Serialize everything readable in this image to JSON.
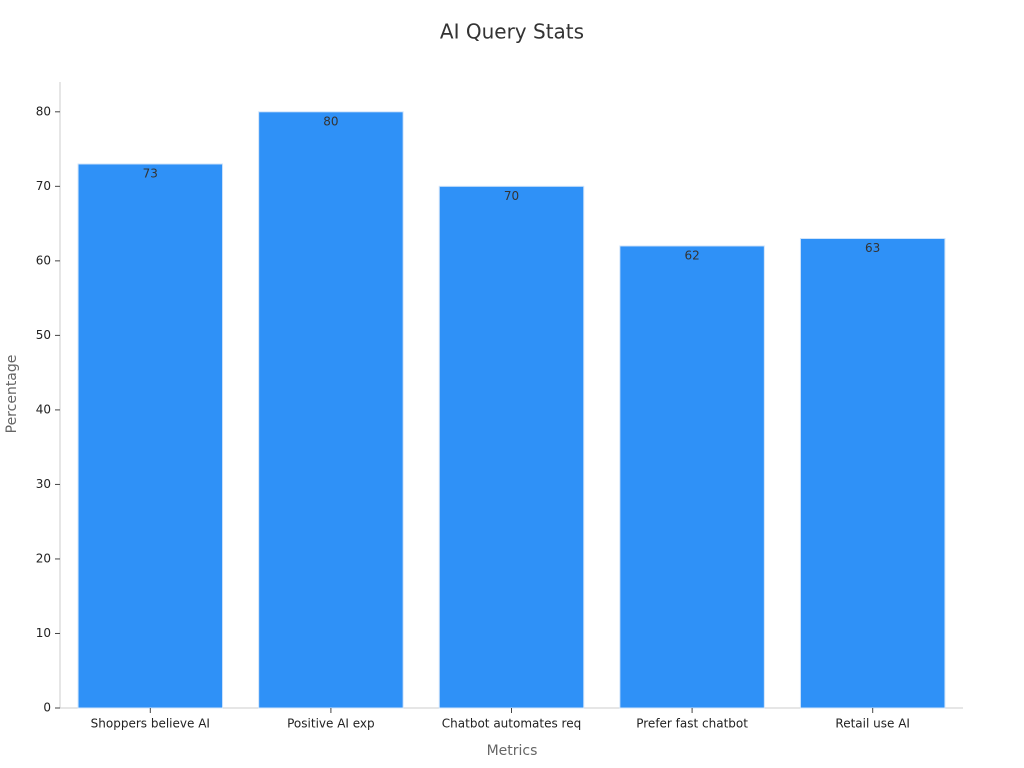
{
  "chart_data": {
    "type": "bar",
    "title": "AI Query Stats",
    "x_label": "Metrics",
    "y_label": "Percentage",
    "categories": [
      "Shoppers believe AI",
      "Positive AI exp",
      "Chatbot automates req",
      "Prefer fast chatbot",
      "Retail use AI"
    ],
    "values": [
      73,
      80,
      70,
      62,
      63
    ],
    "color": "#2f91f7",
    "ylim": [
      0,
      84
    ],
    "yticks": [
      0,
      10,
      20,
      30,
      40,
      50,
      60,
      70,
      80
    ],
    "grid": false
  }
}
